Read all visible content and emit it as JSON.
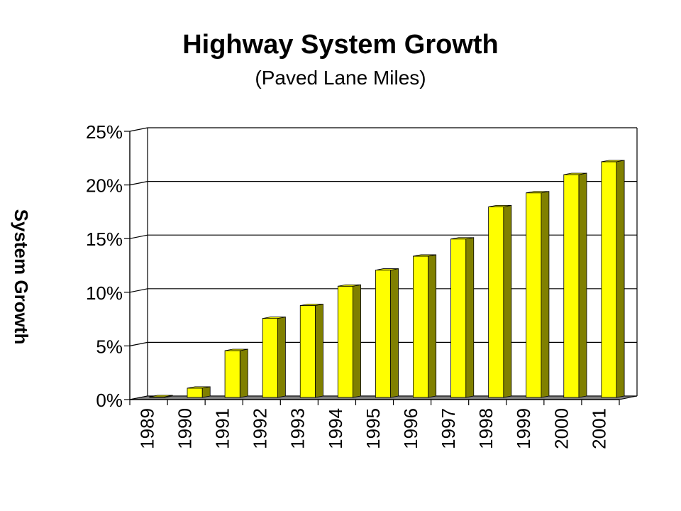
{
  "chart_data": {
    "type": "bar",
    "title": "Highway System Growth",
    "subtitle": "(Paved Lane Miles)",
    "xlabel": "",
    "ylabel": "System Growth",
    "categories": [
      "1989",
      "1990",
      "1991",
      "1992",
      "1993",
      "1994",
      "1995",
      "1996",
      "1997",
      "1998",
      "1999",
      "2000",
      "2001"
    ],
    "values": [
      0.0,
      0.8,
      4.3,
      7.3,
      8.5,
      10.3,
      11.8,
      13.1,
      14.7,
      17.7,
      19.0,
      20.7,
      21.9
    ],
    "value_unit": "%",
    "ylim": [
      0,
      25
    ],
    "yticks": [
      "0%",
      "5%",
      "10%",
      "15%",
      "20%",
      "25%"
    ],
    "grid": true,
    "legend": "none",
    "bar_style": "3d",
    "colors": {
      "bar_front": "#ffff00",
      "bar_side": "#808000",
      "bar_top": "#e6e600",
      "floor": "#808080"
    }
  }
}
